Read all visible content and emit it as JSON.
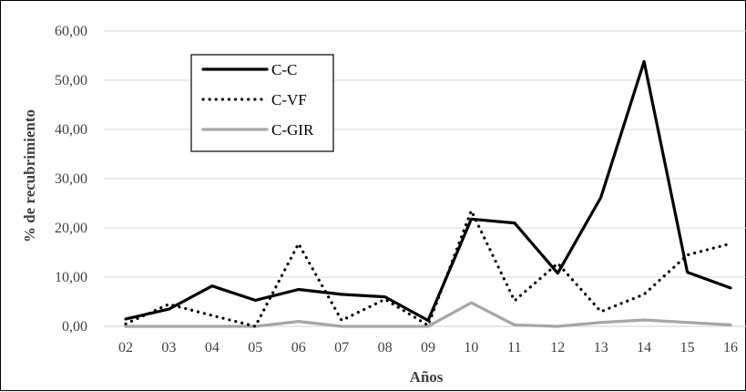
{
  "chart_data": {
    "type": "line",
    "title": "",
    "xlabel": "Años",
    "ylabel": "% de recubrimiento",
    "categories": [
      "02",
      "03",
      "04",
      "05",
      "06",
      "07",
      "08",
      "09",
      "10",
      "11",
      "12",
      "13",
      "14",
      "15",
      "16"
    ],
    "yticks": [
      "0,00",
      "10,00",
      "20,00",
      "30,00",
      "40,00",
      "50,00",
      "60,00"
    ],
    "ylim": [
      0,
      60
    ],
    "grid": "horizontal",
    "legend_position": "top-left",
    "series": [
      {
        "name": "C-C",
        "style": "solid",
        "color": "#000000",
        "values": [
          1.5,
          3.5,
          8.2,
          5.3,
          7.5,
          6.5,
          6.0,
          1.2,
          21.8,
          21.0,
          10.8,
          26.2,
          53.8,
          11.0,
          7.8
        ]
      },
      {
        "name": "C-VF",
        "style": "dotted",
        "color": "#000000",
        "values": [
          0.5,
          4.5,
          2.2,
          0.0,
          16.8,
          1.2,
          5.5,
          0.2,
          23.5,
          5.2,
          12.8,
          3.0,
          6.5,
          14.5,
          16.8
        ]
      },
      {
        "name": "C-GIR",
        "style": "solid",
        "color": "#a6a6a6",
        "values": [
          0.0,
          0.0,
          0.0,
          0.0,
          1.0,
          0.0,
          0.0,
          0.0,
          4.8,
          0.3,
          0.0,
          0.8,
          1.3,
          0.8,
          0.3
        ]
      }
    ]
  }
}
